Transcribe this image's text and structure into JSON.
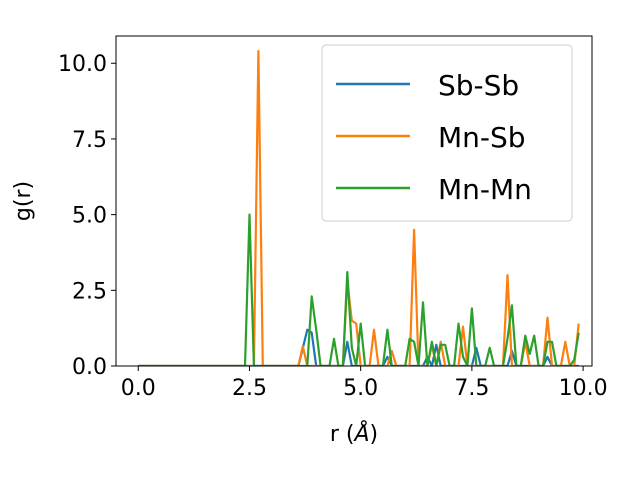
{
  "chart_data": {
    "type": "line",
    "xlabel": "r (",
    "xlabel_symbol": "Å",
    "xlabel_close": ")",
    "ylabel": "g(r)",
    "xlim": [
      -0.5,
      10.2
    ],
    "ylim": [
      0,
      10.9
    ],
    "x_ticks": [
      0.0,
      2.5,
      5.0,
      7.5,
      10.0
    ],
    "x_tick_labels": [
      "0.0",
      "2.5",
      "5.0",
      "7.5",
      "10.0"
    ],
    "y_ticks": [
      0.0,
      2.5,
      5.0,
      7.5,
      10.0
    ],
    "y_tick_labels": [
      "0.0",
      "2.5",
      "5.0",
      "7.5",
      "10.0"
    ],
    "grid": false,
    "legend_position": "top-right",
    "series": [
      {
        "name": "Sb-Sb",
        "color": "#1f77b4",
        "points": [
          [
            0,
            0
          ],
          [
            3.6,
            0
          ],
          [
            3.8,
            1.2
          ],
          [
            3.9,
            1.1
          ],
          [
            4.0,
            0
          ],
          [
            4.6,
            0
          ],
          [
            4.7,
            0.8
          ],
          [
            4.8,
            0
          ],
          [
            5.5,
            0
          ],
          [
            5.6,
            0.3
          ],
          [
            5.7,
            0
          ],
          [
            6.4,
            0
          ],
          [
            6.5,
            0.3
          ],
          [
            6.6,
            0
          ],
          [
            6.7,
            0.7
          ],
          [
            6.8,
            0
          ],
          [
            7.5,
            0
          ],
          [
            7.6,
            0.6
          ],
          [
            7.7,
            0
          ],
          [
            8.3,
            0
          ],
          [
            8.4,
            0.5
          ],
          [
            8.5,
            0
          ],
          [
            9.1,
            0
          ],
          [
            9.2,
            0.3
          ],
          [
            9.3,
            0
          ],
          [
            9.9,
            0
          ]
        ]
      },
      {
        "name": "Mn-Sb",
        "color": "#ff7f0e",
        "points": [
          [
            0,
            0
          ],
          [
            2.6,
            0
          ],
          [
            2.7,
            10.4
          ],
          [
            2.8,
            0
          ],
          [
            3.6,
            0
          ],
          [
            3.7,
            0.65
          ],
          [
            3.8,
            0
          ],
          [
            4.6,
            0
          ],
          [
            4.7,
            2.8
          ],
          [
            4.8,
            1.5
          ],
          [
            4.9,
            1.4
          ],
          [
            5.0,
            0
          ],
          [
            5.2,
            0
          ],
          [
            5.3,
            1.2
          ],
          [
            5.4,
            0
          ],
          [
            5.6,
            0
          ],
          [
            5.7,
            0.5
          ],
          [
            5.8,
            0
          ],
          [
            6.1,
            0
          ],
          [
            6.2,
            4.5
          ],
          [
            6.3,
            0
          ],
          [
            6.5,
            0
          ],
          [
            6.6,
            0.7
          ],
          [
            6.7,
            0
          ],
          [
            6.8,
            0.8
          ],
          [
            6.9,
            0
          ],
          [
            7.2,
            0
          ],
          [
            7.3,
            1.3
          ],
          [
            7.4,
            0
          ],
          [
            8.2,
            0
          ],
          [
            8.3,
            3.0
          ],
          [
            8.4,
            0
          ],
          [
            8.6,
            0
          ],
          [
            8.7,
            0.8
          ],
          [
            8.8,
            0
          ],
          [
            9.1,
            0
          ],
          [
            9.2,
            1.6
          ],
          [
            9.3,
            0
          ],
          [
            9.5,
            0
          ],
          [
            9.6,
            0.8
          ],
          [
            9.7,
            0
          ],
          [
            9.8,
            0
          ],
          [
            9.9,
            1.4
          ]
        ]
      },
      {
        "name": "Mn-Mn",
        "color": "#2ca02c",
        "points": [
          [
            0,
            0
          ],
          [
            2.4,
            0
          ],
          [
            2.5,
            5.0
          ],
          [
            2.6,
            0
          ],
          [
            3.8,
            0
          ],
          [
            3.9,
            2.3
          ],
          [
            4.0,
            1.2
          ],
          [
            4.1,
            0
          ],
          [
            4.3,
            0
          ],
          [
            4.4,
            0.9
          ],
          [
            4.5,
            0
          ],
          [
            4.6,
            0
          ],
          [
            4.7,
            3.1
          ],
          [
            4.8,
            0.6
          ],
          [
            4.9,
            0
          ],
          [
            5.0,
            1.4
          ],
          [
            5.1,
            0
          ],
          [
            5.5,
            0
          ],
          [
            5.6,
            1.2
          ],
          [
            5.7,
            0
          ],
          [
            6.0,
            0
          ],
          [
            6.1,
            0.9
          ],
          [
            6.2,
            0.8
          ],
          [
            6.3,
            0
          ],
          [
            6.4,
            2.1
          ],
          [
            6.5,
            0
          ],
          [
            6.6,
            0.8
          ],
          [
            6.7,
            0
          ],
          [
            6.8,
            0.7
          ],
          [
            6.9,
            0.7
          ],
          [
            7.0,
            0
          ],
          [
            7.1,
            0
          ],
          [
            7.2,
            1.4
          ],
          [
            7.3,
            0.3
          ],
          [
            7.4,
            0
          ],
          [
            7.5,
            1.9
          ],
          [
            7.6,
            0
          ],
          [
            7.8,
            0
          ],
          [
            7.9,
            0.6
          ],
          [
            8.0,
            0
          ],
          [
            8.2,
            0
          ],
          [
            8.3,
            0.9
          ],
          [
            8.4,
            2.0
          ],
          [
            8.5,
            0
          ],
          [
            8.6,
            0
          ],
          [
            8.7,
            1.0
          ],
          [
            8.8,
            0.4
          ],
          [
            8.9,
            1.0
          ],
          [
            9.0,
            0
          ],
          [
            9.1,
            0
          ],
          [
            9.2,
            0.8
          ],
          [
            9.3,
            0.8
          ],
          [
            9.4,
            0
          ],
          [
            9.7,
            0
          ],
          [
            9.8,
            0.2
          ],
          [
            9.9,
            1.1
          ]
        ]
      }
    ]
  }
}
